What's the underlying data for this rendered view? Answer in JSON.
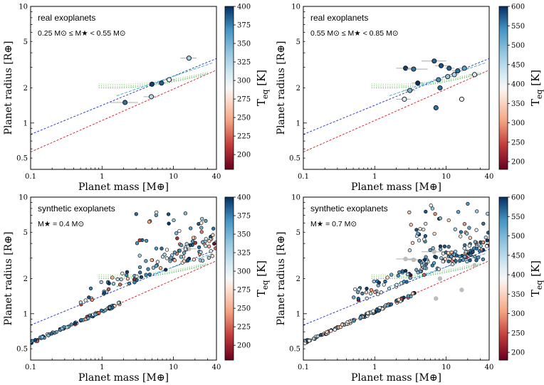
{
  "figure": {
    "xlabel": "Planet mass [M⊕]",
    "ylabel": "Planet radius [R⊕]",
    "cbar_label": "T",
    "cbar_sub": "eq",
    "cbar_unit": "[K]"
  },
  "chart_data": [
    {
      "type": "scatter",
      "id": "tl",
      "title": "real exoplanets",
      "subtitle": "0.25 M⊙ ≤ M★ < 0.55 M⊙",
      "xlabel": "Planet mass [M⊕]",
      "ylabel": "Planet radius [R⊕]",
      "xscale": "log",
      "yscale": "log",
      "xlim": [
        0.1,
        40
      ],
      "ylim": [
        0.4,
        10
      ],
      "xticks": [
        0.1,
        1,
        10,
        40
      ],
      "yticks": [
        0.5,
        1,
        2,
        5,
        10
      ],
      "colorbar": {
        "label": "Teq [K]",
        "range": [
          180,
          400
        ],
        "ticks": [
          200,
          225,
          250,
          275,
          300,
          325,
          350,
          375,
          400
        ]
      },
      "points": [
        {
          "x": 2.1,
          "y": 1.5,
          "t": 380,
          "xerr": [
            1.3,
            3.2
          ]
        },
        {
          "x": 4.9,
          "y": 1.68,
          "t": 320,
          "xerr": [
            3.8,
            6.1
          ]
        },
        {
          "x": 5.0,
          "y": 2.15,
          "t": 395,
          "xerr": [
            4.4,
            5.6
          ]
        },
        {
          "x": 6.8,
          "y": 2.2,
          "t": 385,
          "xerr": [
            6.0,
            7.8
          ]
        },
        {
          "x": 8.7,
          "y": 2.35,
          "t": 298,
          "xerr": [
            7.2,
            10.5
          ]
        },
        {
          "x": 16.5,
          "y": 3.6,
          "t": 330,
          "xerr": [
            12.5,
            21.0
          ]
        }
      ]
    },
    {
      "type": "scatter",
      "id": "tr",
      "title": "real exoplanets",
      "subtitle": "0.55 M⊙ ≤ M★ < 0.85 M⊙",
      "xlabel": "Planet mass [M⊕]",
      "ylabel": "Planet radius [R⊕]",
      "xscale": "log",
      "yscale": "log",
      "xlim": [
        0.1,
        40
      ],
      "ylim": [
        0.4,
        10
      ],
      "xticks": [
        0.1,
        1,
        10,
        40
      ],
      "yticks": [
        0.5,
        1,
        2,
        5,
        10
      ],
      "colorbar": {
        "label": "Teq [K]",
        "range": [
          180,
          600
        ],
        "ticks": [
          200,
          250,
          300,
          350,
          400,
          450,
          500,
          550,
          600
        ]
      },
      "points": [
        {
          "x": 2.6,
          "y": 1.6,
          "t": 420,
          "xerr": [
            2.0,
            3.2
          ]
        },
        {
          "x": 3.1,
          "y": 1.9,
          "t": 500,
          "xerr": [
            2.5,
            3.7
          ]
        },
        {
          "x": 2.7,
          "y": 2.95,
          "t": 590,
          "xerr": [
            2.0,
            3.8
          ]
        },
        {
          "x": 3.5,
          "y": 2.9,
          "t": 560,
          "xerr": [
            2.8,
            5.5
          ]
        },
        {
          "x": 4.0,
          "y": 2.2,
          "t": 600,
          "xerr": [
            3.3,
            4.8
          ]
        },
        {
          "x": 6.8,
          "y": 3.4,
          "t": 570,
          "xerr": [
            4.5,
            10.0
          ]
        },
        {
          "x": 7.2,
          "y": 1.35,
          "t": 560,
          "xerr": [
            6.6,
            7.8
          ]
        },
        {
          "x": 7.8,
          "y": 2.35,
          "t": 540,
          "xerr": [
            6.6,
            9.0
          ]
        },
        {
          "x": 8.2,
          "y": 2.0,
          "t": 560,
          "xerr": [
            7.5,
            9.0
          ]
        },
        {
          "x": 8.5,
          "y": 3.1,
          "t": 580,
          "xerr": [
            7.0,
            10.5
          ]
        },
        {
          "x": 10.5,
          "y": 2.5,
          "t": 480,
          "xerr": [
            9.0,
            12.2
          ]
        },
        {
          "x": 11.0,
          "y": 2.95,
          "t": 570,
          "xerr": [
            9.5,
            13.0
          ]
        },
        {
          "x": 13.0,
          "y": 2.6,
          "t": 460,
          "xerr": [
            11.0,
            15.0
          ]
        },
        {
          "x": 14.5,
          "y": 2.8,
          "t": 560,
          "xerr": [
            12.0,
            17.0
          ]
        },
        {
          "x": 18.0,
          "y": 2.95,
          "t": 520,
          "xerr": [
            15.0,
            21.0
          ]
        },
        {
          "x": 16.5,
          "y": 1.6,
          "t": 400,
          "xerr": [
            15.0,
            18.0
          ]
        },
        {
          "x": 25.0,
          "y": 2.6,
          "t": 420,
          "xerr": [
            21.0,
            30.0
          ]
        }
      ]
    },
    {
      "type": "scatter",
      "id": "bl",
      "title": "synthetic exoplanets",
      "subtitle": "M★ = 0.4 M⊙",
      "xlabel": "Planet mass [M⊕]",
      "ylabel": "Planet radius [R⊕]",
      "xscale": "log",
      "yscale": "log",
      "xlim": [
        0.1,
        40
      ],
      "ylim": [
        0.4,
        10
      ],
      "xticks": [
        0.1,
        1,
        10,
        40
      ],
      "yticks": [
        0.5,
        1,
        2,
        5,
        10
      ],
      "colorbar": {
        "label": "Teq [K]",
        "range": [
          180,
          400
        ],
        "ticks": [
          200,
          225,
          250,
          275,
          300,
          325,
          350,
          375,
          400
        ]
      },
      "background_points": [
        {
          "x": 16.5,
          "y": 3.6,
          "xerr": [
            12.5,
            21.0
          ]
        }
      ]
    },
    {
      "type": "scatter",
      "id": "br",
      "title": "synthetic exoplanets",
      "subtitle": "M★ = 0.7 M⊙",
      "xlabel": "Planet mass [M⊕]",
      "ylabel": "Planet radius [R⊕]",
      "xscale": "log",
      "yscale": "log",
      "xlim": [
        0.1,
        40
      ],
      "ylim": [
        0.4,
        10
      ],
      "xticks": [
        0.1,
        1,
        10,
        40
      ],
      "yticks": [
        0.5,
        1,
        2,
        5,
        10
      ],
      "colorbar": {
        "label": "Teq [K]",
        "range": [
          180,
          600
        ],
        "ticks": [
          200,
          250,
          300,
          350,
          400,
          450,
          500,
          550,
          600
        ]
      },
      "background_points": [
        {
          "x": 2.7,
          "y": 2.95,
          "xerr": [
            2.0,
            3.8
          ]
        },
        {
          "x": 3.5,
          "y": 2.9,
          "xerr": [
            2.8,
            5.5
          ]
        },
        {
          "x": 6.8,
          "y": 3.4,
          "xerr": [
            4.5,
            10.0
          ]
        },
        {
          "x": 7.2,
          "y": 1.35
        },
        {
          "x": 16.5,
          "y": 1.6
        },
        {
          "x": 8.2,
          "y": 2.0
        },
        {
          "x": 25.0,
          "y": 2.6
        }
      ]
    }
  ]
}
